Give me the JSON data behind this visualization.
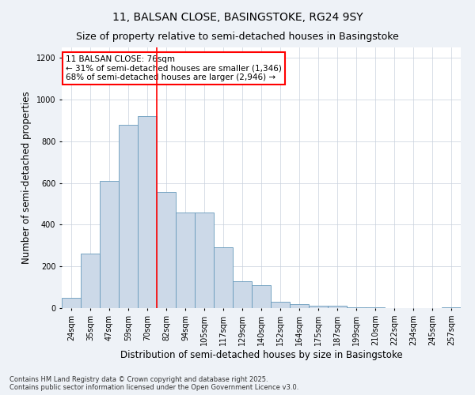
{
  "title": "11, BALSAN CLOSE, BASINGSTOKE, RG24 9SY",
  "subtitle": "Size of property relative to semi-detached houses in Basingstoke",
  "xlabel": "Distribution of semi-detached houses by size in Basingstoke",
  "ylabel": "Number of semi-detached properties",
  "categories": [
    "24sqm",
    "35sqm",
    "47sqm",
    "59sqm",
    "70sqm",
    "82sqm",
    "94sqm",
    "105sqm",
    "117sqm",
    "129sqm",
    "140sqm",
    "152sqm",
    "164sqm",
    "175sqm",
    "187sqm",
    "199sqm",
    "210sqm",
    "222sqm",
    "234sqm",
    "245sqm",
    "257sqm"
  ],
  "values": [
    50,
    260,
    610,
    880,
    920,
    555,
    460,
    460,
    290,
    130,
    110,
    30,
    20,
    12,
    10,
    5,
    3,
    1,
    1,
    0,
    2
  ],
  "bar_color": "#ccd9e8",
  "bar_edge_color": "#6699bb",
  "vline_x": 4.5,
  "vline_color": "red",
  "annotation_title": "11 BALSAN CLOSE: 76sqm",
  "annotation_line1": "← 31% of semi-detached houses are smaller (1,346)",
  "annotation_line2": "68% of semi-detached houses are larger (2,946) →",
  "annotation_box_color": "red",
  "ylim": [
    0,
    1250
  ],
  "yticks": [
    0,
    200,
    400,
    600,
    800,
    1000,
    1200
  ],
  "footer1": "Contains HM Land Registry data © Crown copyright and database right 2025.",
  "footer2": "Contains public sector information licensed under the Open Government Licence v3.0.",
  "bg_color": "#eef2f7",
  "plot_bg_color": "#ffffff",
  "title_fontsize": 10,
  "subtitle_fontsize": 9,
  "tick_fontsize": 7,
  "label_fontsize": 8.5,
  "annotation_fontsize": 7.5
}
